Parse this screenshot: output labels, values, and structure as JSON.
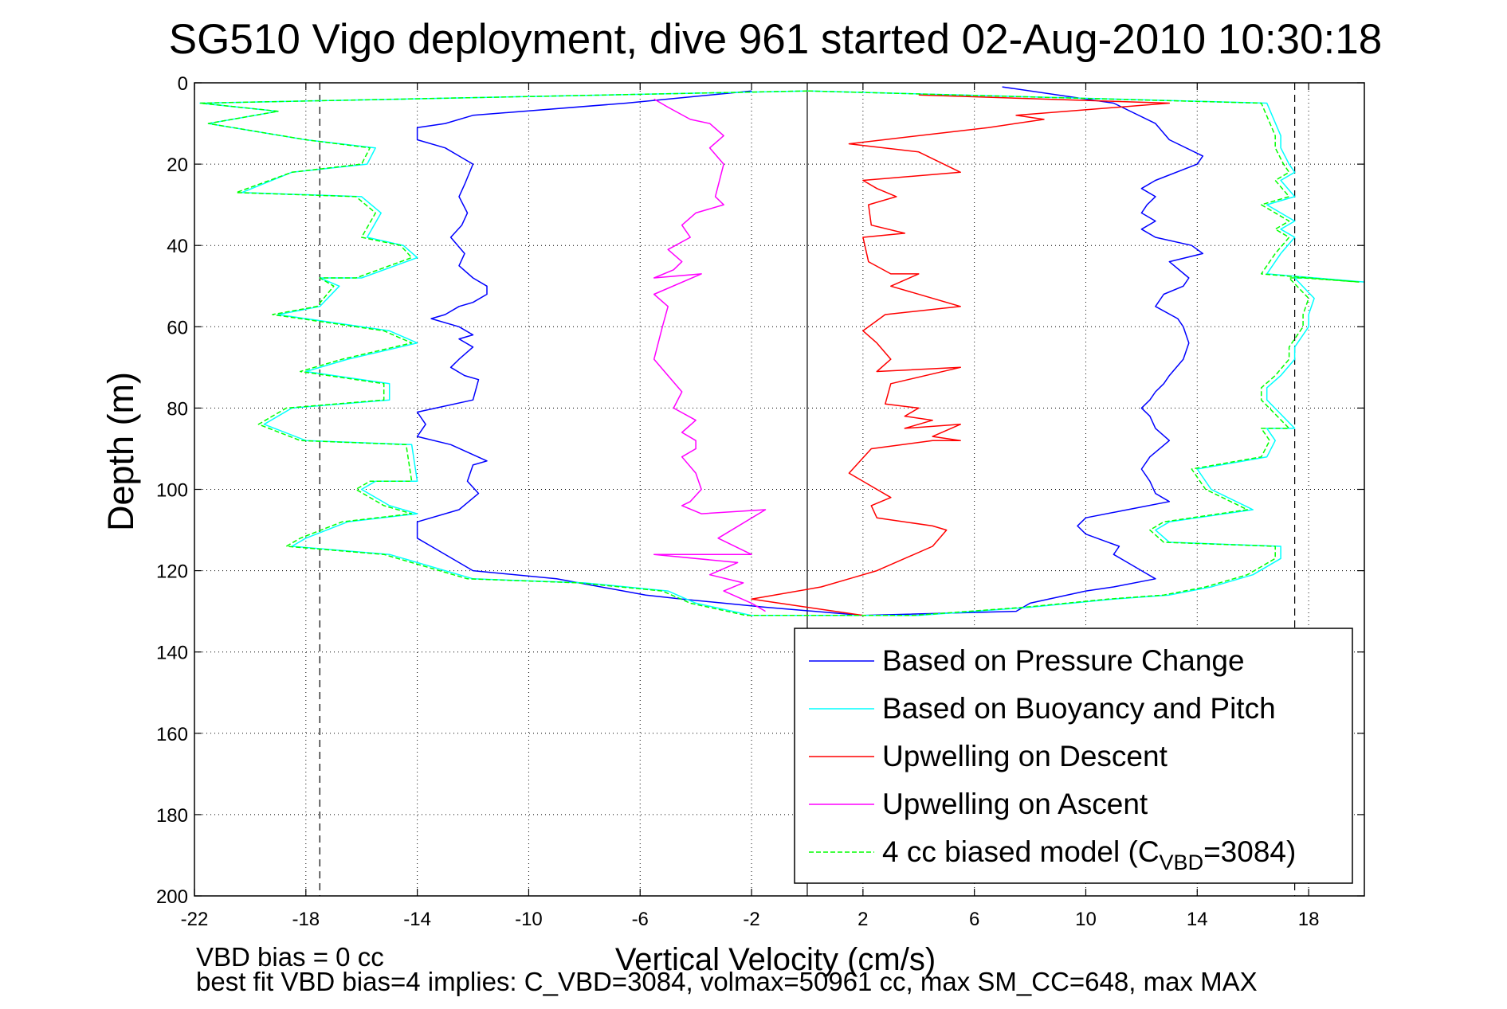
{
  "chart_data": {
    "type": "line",
    "title": "SG510 Vigo deployment, dive 961 started 02-Aug-2010 10:30:18",
    "xlabel": "Vertical Velocity (cm/s)",
    "ylabel": "Depth (m)",
    "xlim": [
      -22,
      20
    ],
    "ylim": [
      0,
      200
    ],
    "y_reversed": true,
    "x_ticks": [
      -22,
      -18,
      -14,
      -10,
      -6,
      -2,
      2,
      6,
      10,
      14,
      18
    ],
    "y_ticks": [
      0,
      20,
      40,
      60,
      80,
      100,
      120,
      140,
      160,
      180,
      200
    ],
    "grid": true,
    "legend_position": "bottom-right",
    "reference_lines": {
      "zero_line": 0,
      "dashed_lines": [
        -17.5,
        17.5
      ]
    },
    "footnotes": [
      "VBD bias = 0 cc",
      "best fit VBD bias=4 implies: C_VBD=3084, volmax=50961 cc, max SM_CC=648, max MAX"
    ],
    "legend": [
      {
        "label": "Based on Pressure Change",
        "color": "#0000ff",
        "dashed": false
      },
      {
        "label": "Based on Buoyancy and Pitch",
        "color": "#00ffff",
        "dashed": false
      },
      {
        "label": "Upwelling on Descent",
        "color": "#ff0000",
        "dashed": false
      },
      {
        "label": "Upwelling on Ascent",
        "color": "#ff00ff",
        "dashed": false
      },
      {
        "label": "4 cc biased model (C",
        "sub": "VBD",
        "suffix": "=3084)",
        "color": "#00ff00",
        "dashed": true
      }
    ],
    "series": [
      {
        "name": "Based on Pressure Change",
        "color": "#0000ff",
        "dashed": false,
        "x": [
          -2.0,
          -6.5,
          -12.0,
          -13.0,
          -14.0,
          -14.0,
          -13.0,
          -12.5,
          -12.0,
          -12.3,
          -12.5,
          -12.2,
          -12.4,
          -12.8,
          -12.3,
          -12.5,
          -12.0,
          -11.5,
          -11.5,
          -12.0,
          -12.5,
          -13.0,
          -13.5,
          -12.5,
          -12.0,
          -12.5,
          -12.0,
          -12.5,
          -12.8,
          -12.3,
          -11.8,
          -12.0,
          -14.0,
          -13.7,
          -14.0,
          -12.8,
          -11.5,
          -12.0,
          -12.2,
          -11.8,
          -12.5,
          -14.0,
          -14.0,
          -13.5,
          -12.0,
          -9.0,
          -5.8,
          -4.5,
          -1.5,
          2.0,
          7.5,
          8.0,
          10.0,
          11.0,
          12.5,
          12.0,
          11.5,
          11.0,
          11.2,
          10.8,
          10.0,
          9.7,
          10.0,
          11.5,
          13.0,
          12.5,
          12.3,
          12.0,
          12.3,
          13.0,
          12.5,
          12.3,
          12.0,
          12.3,
          12.5,
          12.8,
          13.0,
          13.5,
          13.7,
          13.5,
          13.3,
          12.5,
          12.8,
          13.5,
          13.7,
          13.0,
          14.2,
          13.8,
          12.5,
          12.0,
          12.5,
          12.0,
          12.2,
          12.5,
          12.0,
          12.5,
          14.0,
          14.2,
          13.0,
          12.5,
          11.0,
          7.0
        ],
        "y": [
          2,
          5,
          8,
          10,
          11,
          14,
          16,
          18,
          20,
          25,
          28,
          32,
          35,
          38,
          42,
          45,
          48,
          50,
          52,
          54,
          55,
          57,
          58,
          60,
          62,
          63,
          65,
          68,
          70,
          72,
          73,
          78,
          81,
          84,
          87,
          89,
          93,
          94,
          98,
          101,
          105,
          108,
          112,
          114,
          120,
          122,
          126,
          127,
          129,
          131,
          130,
          128,
          125,
          124,
          122,
          120,
          118,
          116,
          114,
          113,
          111,
          109,
          107,
          105,
          103,
          101,
          98,
          95,
          92,
          88,
          85,
          82,
          80,
          78,
          76,
          74,
          72,
          68,
          64,
          60,
          58,
          55,
          52,
          50,
          48,
          44,
          42,
          40,
          38,
          36,
          34,
          32,
          30,
          28,
          26,
          24,
          20,
          18,
          14,
          10,
          5,
          1
        ]
      },
      {
        "name": "Based on Buoyancy and Pitch",
        "color": "#00ffff",
        "dashed": false,
        "x": [
          0.0,
          -21.8,
          -19.0,
          -21.5,
          -18.0,
          -15.5,
          -15.8,
          -18.5,
          -20.3,
          -16.0,
          -15.3,
          -15.8,
          -14.5,
          -14.0,
          -16.0,
          -17.5,
          -16.8,
          -17.5,
          -19.0,
          -15.0,
          -14.0,
          -16.5,
          -18.0,
          -15.0,
          -15.0,
          -18.5,
          -19.5,
          -18.0,
          -14.2,
          -14.0,
          -15.5,
          -16.0,
          -15.0,
          -14.0,
          -16.5,
          -18.0,
          -18.5,
          -15.0,
          -12.0,
          -8.0,
          -5.0,
          -4.0,
          -2.0,
          0.0,
          4.0,
          8.0,
          11.0,
          13.0,
          14.5,
          16.0,
          17.0,
          17.0,
          13.0,
          12.5,
          13.0,
          16.0,
          14.5,
          14.0,
          16.5,
          16.8,
          16.5,
          17.5,
          16.5,
          16.5,
          17.0,
          17.5,
          17.5,
          18.0,
          18.0,
          18.2,
          17.5,
          18.0,
          20.0,
          16.5,
          17.0,
          17.5,
          17.0,
          17.5,
          16.5,
          17.5,
          17.0,
          17.5,
          17.3,
          17.0,
          17.0,
          16.5,
          0.0
        ],
        "y": [
          2,
          5,
          7,
          10,
          14,
          16,
          20,
          22,
          27,
          28,
          32,
          38,
          40,
          43,
          48,
          48,
          50,
          55,
          57,
          61,
          64,
          68,
          71,
          74,
          78,
          80,
          84,
          88,
          89,
          98,
          98,
          100,
          104,
          106,
          108,
          112,
          114,
          116,
          122,
          123,
          125,
          128,
          131,
          131,
          131,
          129,
          127,
          126,
          124,
          121,
          117,
          114,
          113,
          110,
          108,
          105,
          100,
          95,
          92,
          88,
          85,
          85,
          78,
          75,
          72,
          68,
          65,
          60,
          57,
          53,
          48,
          48,
          49,
          47,
          42,
          38,
          36,
          34,
          30,
          28,
          24,
          22,
          20,
          16,
          13,
          5,
          2
        ]
      },
      {
        "name": "Upwelling on Descent",
        "color": "#ff0000",
        "dashed": false,
        "x": [
          4.0,
          13.0,
          7.5,
          8.5,
          6.5,
          1.5,
          4.0,
          5.5,
          2.0,
          2.5,
          3.2,
          2.2,
          2.3,
          3.5,
          2.0,
          2.2,
          3.0,
          4.0,
          3.0,
          5.5,
          2.8,
          2.0,
          2.5,
          3.0,
          2.5,
          5.5,
          3.0,
          2.8,
          4.0,
          3.5,
          4.5,
          3.5,
          5.5,
          4.5,
          5.5,
          4.5,
          2.3,
          1.5,
          2.5,
          3.0,
          2.3,
          2.5,
          4.5,
          5.0,
          4.5,
          2.5,
          1.5,
          0.5,
          -2.0,
          2.0
        ],
        "y": [
          3,
          5,
          8,
          9,
          11,
          15,
          17,
          22,
          24,
          26,
          28,
          30,
          35,
          37,
          38,
          44,
          47,
          47,
          50,
          55,
          57,
          61,
          64,
          68,
          71,
          70,
          74,
          79,
          80,
          82,
          83,
          85,
          84,
          87,
          88,
          88,
          90,
          96,
          100,
          102,
          104,
          107,
          109,
          110,
          114,
          120,
          122,
          124,
          127,
          131
        ]
      },
      {
        "name": "Upwelling on Ascent",
        "color": "#ff00ff",
        "dashed": false,
        "x": [
          -5.5,
          -5.0,
          -4.2,
          -3.5,
          -3.0,
          -3.5,
          -3.0,
          -3.3,
          -3.0,
          -4.0,
          -4.5,
          -4.2,
          -5.0,
          -4.5,
          -4.8,
          -5.5,
          -3.8,
          -5.5,
          -5.0,
          -5.2,
          -5.5,
          -5.0,
          -4.5,
          -4.8,
          -4.0,
          -4.5,
          -4.0,
          -4.0,
          -4.5,
          -4.0,
          -3.8,
          -4.2,
          -4.5,
          -3.8,
          -1.5,
          -3.2,
          -2.0,
          -5.5,
          -2.5,
          -3.5,
          -2.3,
          -3.0,
          -2.0,
          -1.5
        ],
        "y": [
          4,
          6,
          9,
          10,
          13,
          16,
          20,
          28,
          30,
          32,
          35,
          38,
          41,
          44,
          46,
          48,
          47,
          52,
          55,
          60,
          68,
          72,
          76,
          80,
          83,
          86,
          88,
          90,
          92,
          96,
          100,
          103,
          104,
          106,
          105,
          112,
          116,
          116,
          118,
          121,
          123,
          125,
          128,
          130
        ]
      },
      {
        "name": "4 cc biased model (CVBD=3084)",
        "color": "#00ff00",
        "dashed": true,
        "x": [
          0.0,
          -21.8,
          -19.0,
          -21.5,
          -18.0,
          -15.7,
          -16.0,
          -18.5,
          -20.5,
          -16.2,
          -15.5,
          -16.0,
          -14.6,
          -14.2,
          -16.2,
          -17.5,
          -17.0,
          -17.6,
          -19.2,
          -15.2,
          -14.2,
          -16.7,
          -18.2,
          -15.2,
          -15.2,
          -18.7,
          -19.7,
          -18.2,
          -14.4,
          -14.2,
          -15.7,
          -16.2,
          -15.2,
          -14.2,
          -16.7,
          -18.2,
          -18.7,
          -15.2,
          -12.2,
          -8.2,
          -5.2,
          -4.2,
          -2.2,
          0.0,
          3.8,
          7.8,
          10.8,
          12.8,
          14.3,
          15.8,
          16.8,
          16.8,
          12.8,
          12.3,
          12.8,
          15.8,
          14.3,
          13.8,
          16.3,
          16.6,
          16.3,
          17.3,
          16.3,
          16.3,
          16.8,
          17.3,
          17.3,
          17.8,
          17.8,
          18.0,
          17.3,
          17.8,
          19.8,
          16.3,
          16.8,
          17.3,
          16.8,
          17.3,
          16.3,
          17.3,
          16.8,
          17.3,
          17.1,
          16.8,
          16.8,
          16.3,
          0.0
        ],
        "y": [
          2,
          5,
          7,
          10,
          14,
          16,
          20,
          22,
          27,
          28,
          32,
          38,
          40,
          43,
          48,
          48,
          50,
          55,
          57,
          61,
          64,
          68,
          71,
          74,
          78,
          80,
          84,
          88,
          89,
          98,
          98,
          100,
          104,
          106,
          108,
          112,
          114,
          116,
          122,
          123,
          125,
          128,
          131,
          131,
          131,
          129,
          127,
          126,
          124,
          121,
          117,
          114,
          113,
          110,
          108,
          105,
          100,
          95,
          92,
          88,
          85,
          85,
          78,
          75,
          72,
          68,
          65,
          60,
          57,
          53,
          48,
          48,
          49,
          47,
          42,
          38,
          36,
          34,
          30,
          28,
          24,
          22,
          20,
          16,
          13,
          5,
          2
        ]
      }
    ]
  }
}
